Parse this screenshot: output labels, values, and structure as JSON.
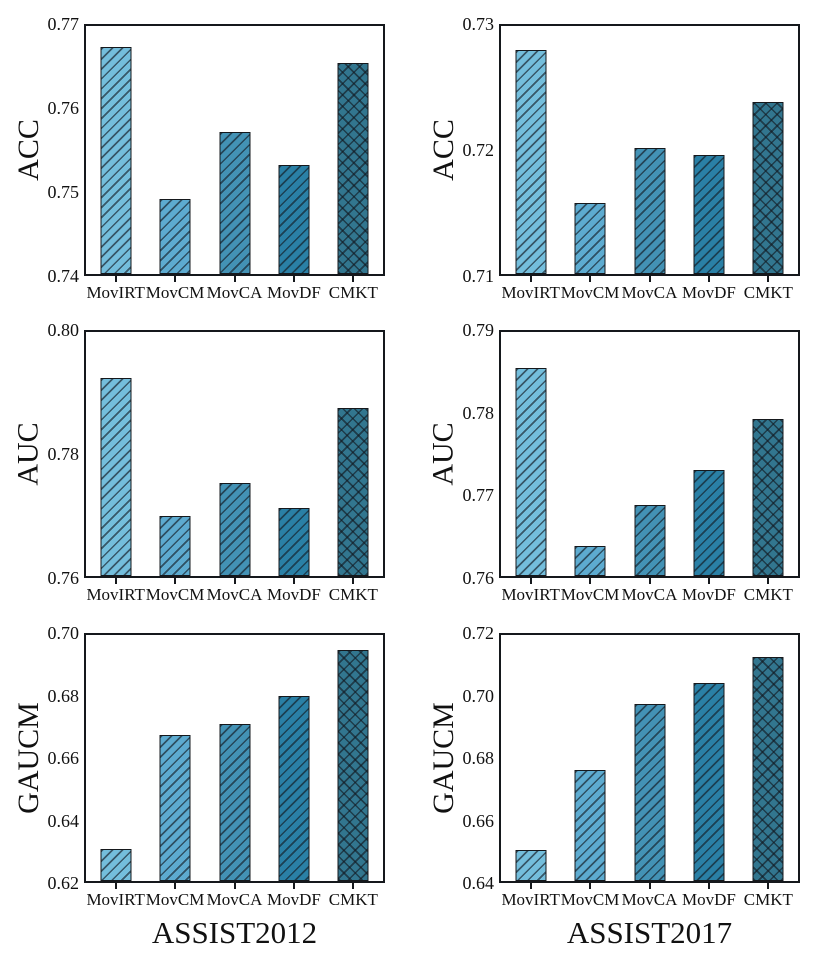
{
  "figure": {
    "background": "#ffffff",
    "border_color": "#15181c",
    "categories": [
      "MovIRT",
      "MovCM",
      "MovCA",
      "MovDF",
      "CMKT"
    ],
    "bar_colors": [
      "#74bedc",
      "#5dabd0",
      "#4392b5",
      "#2a80a6",
      "#32768f"
    ],
    "bar_hatches": [
      "diag",
      "diag",
      "diag",
      "diag",
      "cross"
    ]
  },
  "chart_data": [
    {
      "type": "bar",
      "metric": "ACC",
      "dataset": "ASSIST2012",
      "ylabel": "ACC",
      "xlabel": "",
      "categories": [
        "MovIRT",
        "MovCM",
        "MovCA",
        "MovDF",
        "CMKT"
      ],
      "values": [
        0.7675,
        0.7491,
        0.7572,
        0.7532,
        0.7655
      ],
      "ylim": [
        0.74,
        0.77
      ],
      "yticks": [
        0.74,
        0.75,
        0.76,
        0.77
      ]
    },
    {
      "type": "bar",
      "metric": "ACC",
      "dataset": "ASSIST2017",
      "ylabel": "ACC",
      "xlabel": "",
      "categories": [
        "MovIRT",
        "MovCM",
        "MovCA",
        "MovDF",
        "CMKT"
      ],
      "values": [
        0.7281,
        0.7157,
        0.7202,
        0.7196,
        0.7239
      ],
      "ylim": [
        0.71,
        0.73
      ],
      "yticks": [
        0.71,
        0.72,
        0.73
      ]
    },
    {
      "type": "bar",
      "metric": "AUC",
      "dataset": "ASSIST2012",
      "ylabel": "AUC",
      "xlabel": "",
      "categories": [
        "MovIRT",
        "MovCM",
        "MovCA",
        "MovDF",
        "CMKT"
      ],
      "values": [
        0.7925,
        0.7698,
        0.7753,
        0.7712,
        0.7876
      ],
      "ylim": [
        0.76,
        0.8
      ],
      "yticks": [
        0.76,
        0.78,
        0.8
      ]
    },
    {
      "type": "bar",
      "metric": "AUC",
      "dataset": "ASSIST2017",
      "ylabel": "AUC",
      "xlabel": "",
      "categories": [
        "MovIRT",
        "MovCM",
        "MovCA",
        "MovDF",
        "CMKT"
      ],
      "values": [
        0.7856,
        0.7637,
        0.7687,
        0.773,
        0.7793
      ],
      "ylim": [
        0.76,
        0.79
      ],
      "yticks": [
        0.76,
        0.77,
        0.78,
        0.79
      ]
    },
    {
      "type": "bar",
      "metric": "GAUCM",
      "dataset": "ASSIST2012",
      "ylabel": "GAUCM",
      "xlabel": "ASSIST2012",
      "categories": [
        "MovIRT",
        "MovCM",
        "MovCA",
        "MovDF",
        "CMKT"
      ],
      "values": [
        0.6304,
        0.6674,
        0.6711,
        0.6803,
        0.695
      ],
      "ylim": [
        0.62,
        0.7
      ],
      "yticks": [
        0.62,
        0.64,
        0.66,
        0.68,
        0.7
      ]
    },
    {
      "type": "bar",
      "metric": "GAUCM",
      "dataset": "ASSIST2017",
      "ylabel": "GAUCM",
      "xlabel": "ASSIST2017",
      "categories": [
        "MovIRT",
        "MovCM",
        "MovCA",
        "MovDF",
        "CMKT"
      ],
      "values": [
        0.6501,
        0.676,
        0.6976,
        0.7044,
        0.7127
      ],
      "ylim": [
        0.64,
        0.72
      ],
      "yticks": [
        0.64,
        0.66,
        0.68,
        0.7,
        0.72
      ]
    }
  ]
}
